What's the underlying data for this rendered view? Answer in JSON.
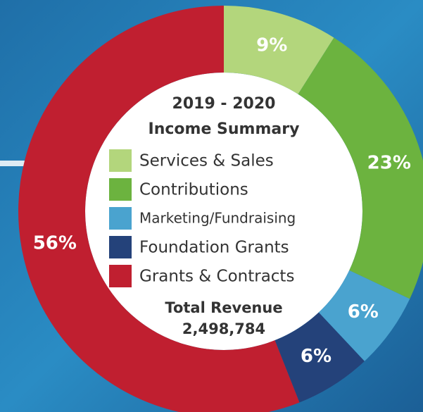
{
  "chart_data": {
    "type": "donut",
    "title": "2019 - 2020",
    "subtitle": "Income Summary",
    "categories": [
      "Services & Sales",
      "Contributions",
      "Marketing/Fundraising",
      "Foundation Grants",
      "Grants & Contracts"
    ],
    "values": [
      9,
      23,
      6,
      6,
      56
    ],
    "value_labels": [
      "9%",
      "23%",
      "6%",
      "6%",
      "56%"
    ],
    "colors": [
      "#b3d67c",
      "#6cb33f",
      "#4aa3cf",
      "#24427a",
      "#c01f30"
    ],
    "annotations": [
      "Total Revenue",
      "2,498,784"
    ]
  }
}
